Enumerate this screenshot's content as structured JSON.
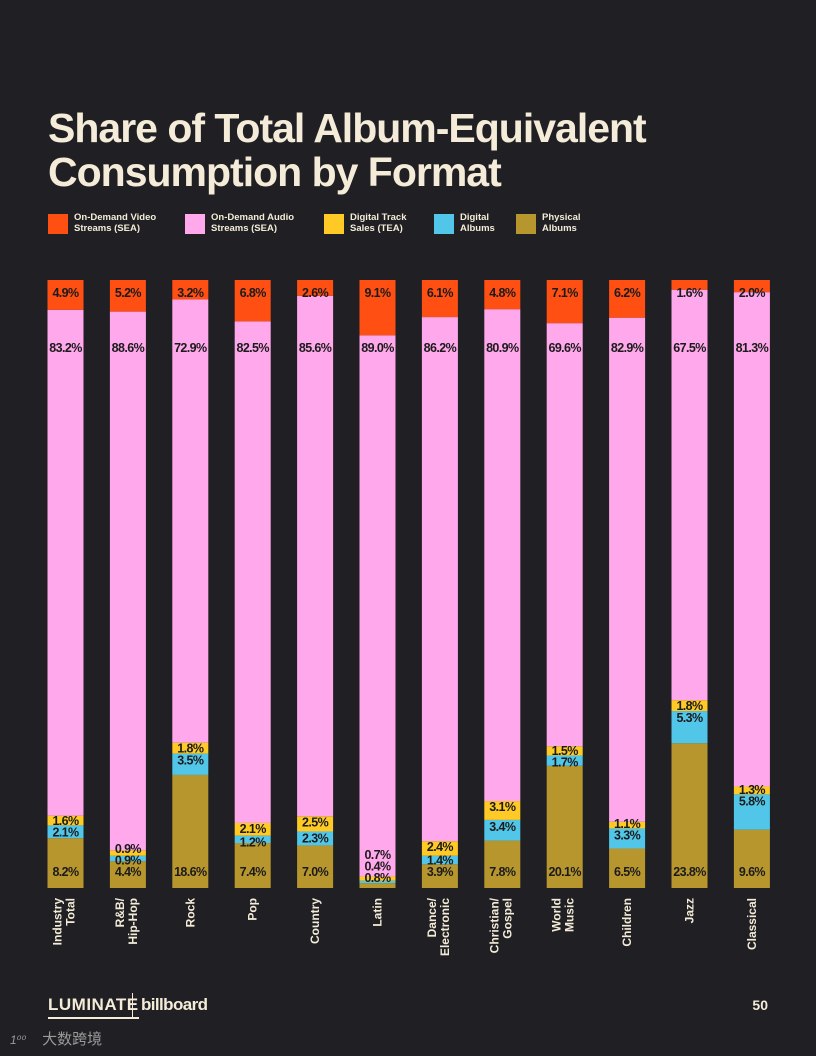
{
  "title": {
    "line1": "Share of Total Album-Equivalent",
    "line2": "Consumption by Format"
  },
  "legend": [
    {
      "label": "On-Demand Video\nStreams (SEA)",
      "color": "#ff4f12"
    },
    {
      "label": "On-Demand Audio\nStreams (SEA)",
      "color": "#ffa8ec"
    },
    {
      "label": "Digital Track\nSales (TEA)",
      "color": "#ffc926"
    },
    {
      "label": "Digital\nAlbums",
      "color": "#52c6e8"
    },
    {
      "label": "Physical\nAlbums",
      "color": "#b8962e"
    }
  ],
  "chart_data": {
    "type": "bar",
    "stacked": true,
    "orientation": "vertical",
    "title": "Share of Total Album-Equivalent Consumption by Format",
    "ylim": [
      0,
      100
    ],
    "unit": "%",
    "categories": [
      "Industry Total",
      "R&B/ Hip-Hop",
      "Rock",
      "Pop",
      "Country",
      "Latin",
      "Dance/ Electronic",
      "Christian/ Gospel",
      "World Music",
      "Children",
      "Jazz",
      "Classical"
    ],
    "category_lines": [
      [
        "Industry",
        "Total"
      ],
      [
        "R&B/",
        "Hip-Hop"
      ],
      [
        "Rock"
      ],
      [
        "Pop"
      ],
      [
        "Country"
      ],
      [
        "Latin"
      ],
      [
        "Dance/",
        "Electronic"
      ],
      [
        "Christian/",
        "Gospel"
      ],
      [
        "World",
        "Music"
      ],
      [
        "Children"
      ],
      [
        "Jazz"
      ],
      [
        "Classical"
      ]
    ],
    "series": [
      {
        "name": "Physical Albums",
        "color": "#b8962e",
        "values": [
          8.2,
          4.4,
          18.6,
          7.4,
          7.0,
          0.8,
          3.9,
          7.8,
          20.1,
          6.5,
          23.8,
          9.6
        ],
        "labels": [
          "8.2%",
          "4.4%",
          "18.6%",
          "7.4%",
          "7.0%",
          "0.8%",
          "3.9%",
          "7.8%",
          "20.1%",
          "6.5%",
          "23.8%",
          "9.6%"
        ]
      },
      {
        "name": "Digital Albums",
        "color": "#52c6e8",
        "values": [
          2.1,
          0.9,
          3.5,
          1.2,
          2.3,
          0.4,
          1.4,
          3.4,
          1.7,
          3.3,
          5.3,
          5.8
        ],
        "labels": [
          "2.1%",
          "0.9%",
          "3.5%",
          "1.2%",
          "2.3%",
          "0.4%",
          "1.4%",
          "3.4%",
          "1.7%",
          "3.3%",
          "5.3%",
          "5.8%"
        ]
      },
      {
        "name": "Digital Track Sales (TEA)",
        "color": "#ffc926",
        "values": [
          1.6,
          0.9,
          1.8,
          2.1,
          2.5,
          0.7,
          2.4,
          3.1,
          1.5,
          1.1,
          1.8,
          1.3
        ],
        "labels": [
          "1.6%",
          "0.9%",
          "1.8%",
          "2.1%",
          "2.5%",
          "0.7%",
          "2.4%",
          "3.1%",
          "1.5%",
          "1.1%",
          "1.8%",
          "1.3%"
        ]
      },
      {
        "name": "On-Demand Audio Streams (SEA)",
        "color": "#ffa8ec",
        "values": [
          83.2,
          88.6,
          72.9,
          82.5,
          85.6,
          89.0,
          86.2,
          80.9,
          69.6,
          82.9,
          67.5,
          81.3
        ],
        "labels": [
          "83.2%",
          "88.6%",
          "72.9%",
          "82.5%",
          "85.6%",
          "89.0%",
          "86.2%",
          "80.9%",
          "69.6%",
          "82.9%",
          "67.5%",
          "81.3%"
        ]
      },
      {
        "name": "On-Demand Video Streams (SEA)",
        "color": "#ff4f12",
        "values": [
          4.9,
          5.2,
          3.2,
          6.8,
          2.6,
          9.1,
          6.1,
          4.8,
          7.1,
          6.2,
          1.6,
          2.0
        ],
        "labels": [
          "4.9%",
          "5.2%",
          "3.2%",
          "6.8%",
          "2.6%",
          "9.1%",
          "6.1%",
          "4.8%",
          "7.1%",
          "6.2%",
          "1.6%",
          "2.0%"
        ]
      }
    ]
  },
  "footer": {
    "logo": "LUMINATE",
    "brand": "billboard",
    "page_number": "50"
  },
  "watermark": {
    "mark": "1⁰⁰",
    "text": "大数跨境"
  }
}
